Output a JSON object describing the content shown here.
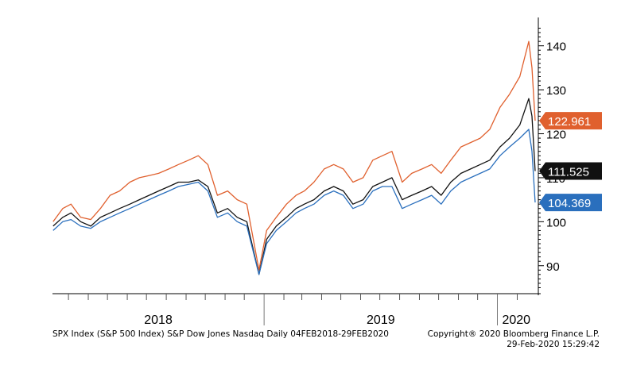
{
  "footer": {
    "source": "SPX Index (S&P 500 Index) S&P Dow Jones Nasdaq  Daily 04FEB2018-29FEB2020",
    "copyright": "Copyright® 2020 Bloomberg Finance L.P.",
    "timestamp": "29-Feb-2020 15:29:42"
  },
  "chart_data": {
    "type": "line",
    "title": "",
    "xlabel": "",
    "ylabel": "",
    "x_range": [
      "2018-02-04",
      "2020-02-29"
    ],
    "ylim": [
      84,
      145
    ],
    "y_ticks": [
      90,
      100,
      110,
      120,
      130,
      140
    ],
    "year_labels": [
      "2018",
      "2019",
      "2020"
    ],
    "grid": false,
    "x": [
      "2018-02-05",
      "2018-02-20",
      "2018-03-05",
      "2018-03-20",
      "2018-04-05",
      "2018-04-20",
      "2018-05-05",
      "2018-05-20",
      "2018-06-05",
      "2018-06-20",
      "2018-07-05",
      "2018-07-20",
      "2018-08-05",
      "2018-08-20",
      "2018-09-05",
      "2018-09-20",
      "2018-10-05",
      "2018-10-20",
      "2018-11-05",
      "2018-11-20",
      "2018-12-05",
      "2018-12-24",
      "2019-01-05",
      "2019-01-20",
      "2019-02-05",
      "2019-02-20",
      "2019-03-05",
      "2019-03-20",
      "2019-04-05",
      "2019-04-20",
      "2019-05-05",
      "2019-05-20",
      "2019-06-05",
      "2019-06-20",
      "2019-07-05",
      "2019-07-20",
      "2019-08-05",
      "2019-08-20",
      "2019-09-05",
      "2019-09-20",
      "2019-10-05",
      "2019-10-20",
      "2019-11-05",
      "2019-11-20",
      "2019-12-05",
      "2019-12-20",
      "2020-01-05",
      "2020-01-20",
      "2020-02-05",
      "2020-02-19",
      "2020-02-24",
      "2020-02-29"
    ],
    "series": [
      {
        "color": "#e0602e",
        "end_label": "122.961",
        "values": [
          100,
          103,
          104,
          101,
          100.5,
          103,
          106,
          107,
          109,
          110,
          110.5,
          111,
          112,
          113,
          114,
          115,
          113,
          106,
          107,
          105,
          104,
          89,
          98,
          101,
          104,
          106,
          107,
          109,
          112,
          113,
          112,
          109,
          110,
          114,
          115,
          116,
          109,
          111,
          112,
          113,
          111,
          114,
          117,
          118,
          119,
          121,
          126,
          129,
          133,
          141,
          135,
          122.961
        ]
      },
      {
        "color": "#111111",
        "end_label": "111.525",
        "values": [
          99,
          101,
          102,
          100,
          99,
          101,
          102,
          103,
          104,
          105,
          106,
          107,
          108,
          109,
          109,
          109.5,
          108,
          102,
          103,
          101,
          100,
          88,
          96,
          99,
          101,
          103,
          104,
          105,
          107,
          108,
          107,
          104,
          105,
          108,
          109,
          110,
          105,
          106,
          107,
          108,
          106,
          109,
          111,
          112,
          113,
          114,
          117,
          119,
          122,
          128,
          124,
          111.525
        ]
      },
      {
        "color": "#2a6fbd",
        "end_label": "104.369",
        "values": [
          98,
          100,
          100.5,
          99,
          98.5,
          100,
          101,
          102,
          103,
          104,
          105,
          106,
          107,
          108,
          108.5,
          109,
          107,
          101,
          102,
          100,
          99,
          88,
          95,
          98,
          100,
          102,
          103,
          104,
          106,
          107,
          106,
          103,
          104,
          107,
          108,
          108,
          103,
          104,
          105,
          106,
          104,
          107,
          109,
          110,
          111,
          112,
          115,
          117,
          119,
          121,
          116,
          104.369
        ]
      }
    ]
  }
}
